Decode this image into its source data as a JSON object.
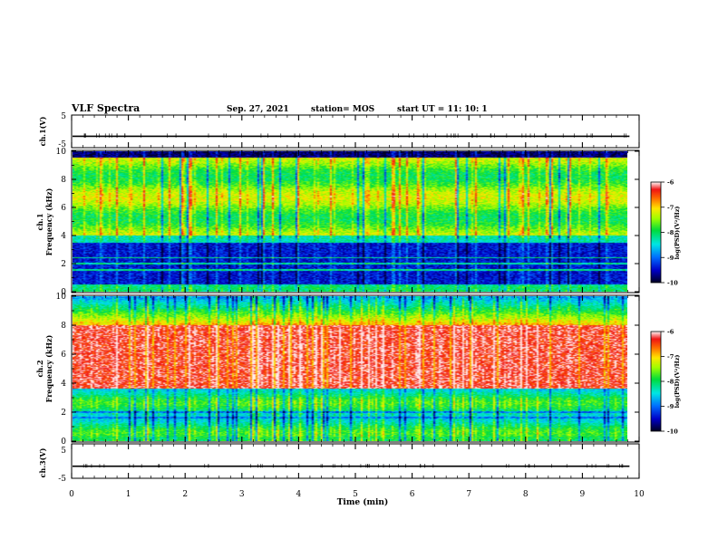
{
  "header": {
    "title": "VLF Spectra",
    "date": "Sep. 27, 2021",
    "station": "station= MOS",
    "start": "start  UT =    11: 10: 1"
  },
  "chart_data": [
    {
      "type": "line",
      "panel": "ch1-waveform",
      "ylabel": "ch.1(V)",
      "ylim": [
        -5,
        5
      ],
      "yticks": [
        "5",
        "-5"
      ],
      "baseline_value": -1.5
    },
    {
      "type": "heatmap",
      "panel": "ch1-spectrogram",
      "ylabel": "Frequency (kHz)",
      "ylabel_channel": "ch.1",
      "ylim": [
        0,
        10
      ],
      "yticks": [
        "0",
        "2",
        "4",
        "6",
        "8",
        "10"
      ],
      "colorbar": {
        "label": "log(PSD)(V²/Hz)",
        "range": [
          -10,
          -6
        ],
        "ticks": [
          "-6",
          "-7",
          "-8",
          "-9",
          "-10"
        ]
      },
      "bands": {
        "active_khz": [
          4,
          9.6
        ],
        "quiet_khz": [
          0.5,
          3.5
        ],
        "lines_khz": [
          0.4,
          1.5,
          2.0,
          2.4
        ]
      }
    },
    {
      "type": "heatmap",
      "panel": "ch2-spectrogram",
      "ylabel": "Frequency (kHz)",
      "ylabel_channel": "ch.2",
      "ylim": [
        0,
        10
      ],
      "yticks": [
        "0",
        "2",
        "4",
        "6",
        "8",
        "10"
      ],
      "colorbar": {
        "label": "log(PSD)(V²/Hz)",
        "range": [
          -10,
          -6
        ],
        "ticks": [
          "-6",
          "-7",
          "-8",
          "-9",
          "-10"
        ]
      },
      "bands": {
        "intense_khz": [
          3.6,
          8.0
        ],
        "green_khz": [
          0.3,
          3.6
        ],
        "lines_khz": [
          1.6,
          2.0
        ]
      }
    },
    {
      "type": "line",
      "panel": "ch3-waveform",
      "ylabel": "ch.3(V)",
      "ylim": [
        -5,
        5
      ],
      "yticks": [
        "5",
        "-5"
      ],
      "baseline_value": -1.5
    }
  ],
  "xaxis": {
    "label": "Time (min)",
    "range": [
      0,
      10
    ],
    "ticks": [
      "0",
      "1",
      "2",
      "3",
      "4",
      "5",
      "6",
      "7",
      "8",
      "9",
      "10"
    ],
    "data_end_min": 9.83
  }
}
